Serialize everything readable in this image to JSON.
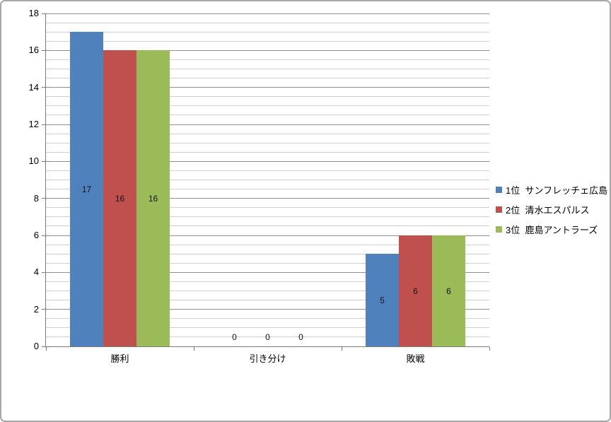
{
  "window": {
    "background": "#FFFFFF",
    "frame_border_color": "#A7A7A7"
  },
  "chart_data": {
    "type": "bar",
    "title": "",
    "categories": [
      "勝利",
      "引き分け",
      "敗戦"
    ],
    "series": [
      {
        "name": "1位  サンフレッチェ広島",
        "color": "#4F81BD",
        "values": [
          17,
          0,
          5
        ]
      },
      {
        "name": "2位  清水エスパルス",
        "color": "#C0504D",
        "values": [
          16,
          0,
          6
        ]
      },
      {
        "name": "3位  鹿島アントラーズ",
        "color": "#9BBB59",
        "values": [
          16,
          0,
          6
        ]
      }
    ],
    "xlabel": "",
    "ylabel": "",
    "ylim": [
      0,
      18
    ],
    "y_major_step": 2,
    "y_minor_step": 0.5,
    "y_tick_labels": [
      "0",
      "2",
      "4",
      "6",
      "8",
      "10",
      "12",
      "14",
      "16",
      "18"
    ],
    "show_data_labels": true,
    "grid": "major-and-minor-horizontal",
    "legend_position": "right",
    "colors": {
      "axis": "#7A7A7A",
      "gridline_major": "#8F8F8F",
      "gridline_minor": "#CFCFCF",
      "label_text": "#000000"
    }
  }
}
